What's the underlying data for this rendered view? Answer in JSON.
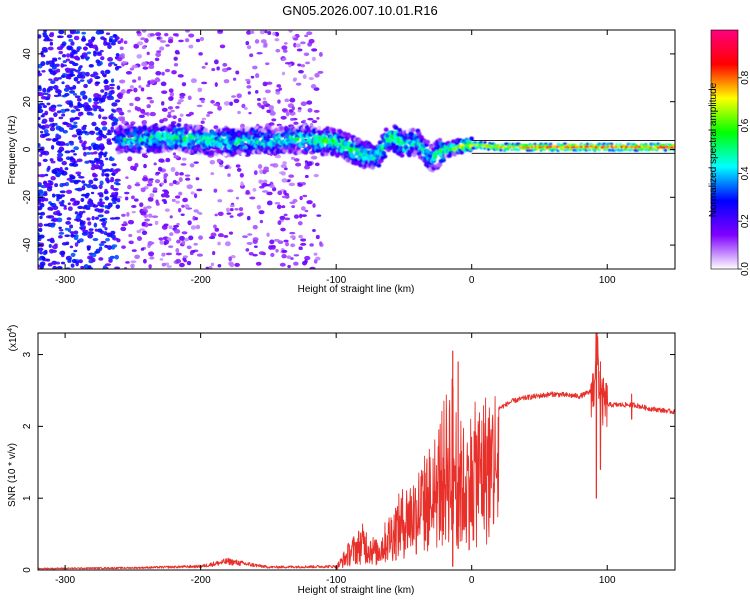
{
  "title": "GN05.2026.007.10.01.R16",
  "chart_data": [
    {
      "type": "heatmap",
      "title": "GN05.2026.007.10.01.R16",
      "xlabel": "Height of straight line (km)",
      "ylabel": "Frequency (Hz)",
      "xlim": [
        -320,
        150
      ],
      "ylim": [
        -50,
        50
      ],
      "xticks": [
        -300,
        -200,
        -100,
        0,
        100
      ],
      "yticks": [
        -40,
        -20,
        0,
        20,
        40
      ],
      "grid": false,
      "colorbar": {
        "label": "Normalized spectral amplitude",
        "range": [
          0.0,
          1.0
        ],
        "ticks": [
          0.0,
          0.2,
          0.4,
          0.6,
          0.8
        ],
        "tick_labels": [
          "0.0",
          "0.2",
          "0.4",
          "0.6",
          "0.8"
        ],
        "colormap": [
          "#ffffff",
          "#7f00ff",
          "#0000ff",
          "#00ffff",
          "#00ff00",
          "#ffff00",
          "#ff0000",
          "#ff0080"
        ]
      },
      "signal_track": {
        "description": "frequency centre of strongest energy vs height",
        "x": [
          -260,
          -220,
          -180,
          -140,
          -120,
          -100,
          -80,
          -70,
          -60,
          -50,
          -40,
          -30,
          -20,
          -10,
          0,
          20,
          50,
          80,
          100,
          120,
          150
        ],
        "freq": [
          4,
          5,
          3,
          4,
          4,
          3,
          -2,
          -3,
          6,
          2,
          3,
          -4,
          0,
          1,
          2,
          1,
          1,
          1,
          1,
          1,
          1
        ],
        "amplitude": [
          0.4,
          0.5,
          0.45,
          0.45,
          0.5,
          0.55,
          0.5,
          0.45,
          0.55,
          0.5,
          0.45,
          0.4,
          0.6,
          0.65,
          0.7,
          0.8,
          0.9,
          0.9,
          0.9,
          0.9,
          0.9
        ]
      }
    },
    {
      "type": "line",
      "xlabel": "Height of straight line (km)",
      "ylabel": "SNR (10 * v/v)",
      "scale_label": "(x10",
      "scale_exp": "4",
      "scale_close": ")",
      "xlim": [
        -320,
        150
      ],
      "ylim": [
        0,
        3.3
      ],
      "xticks": [
        -300,
        -200,
        -100,
        0,
        100
      ],
      "yticks": [
        0,
        1,
        2,
        3
      ],
      "grid": false,
      "series": [
        {
          "name": "SNR",
          "color": "#e8302a",
          "envelope_x": [
            -320,
            -250,
            -200,
            -180,
            -150,
            -100,
            -90,
            -80,
            -70,
            -60,
            -50,
            -40,
            -30,
            -20,
            -15,
            -10,
            -5,
            0,
            10,
            20,
            30,
            40,
            60,
            80,
            90,
            92,
            95,
            100,
            110,
            120,
            130,
            150
          ],
          "envelope_y": [
            0.02,
            0.03,
            0.05,
            0.12,
            0.04,
            0.05,
            0.35,
            0.55,
            0.35,
            0.7,
            1.0,
            1.2,
            1.5,
            2.0,
            2.4,
            1.8,
            1.7,
            1.9,
            2.1,
            2.25,
            2.35,
            2.4,
            2.45,
            2.42,
            2.5,
            3.3,
            2.35,
            2.3,
            2.3,
            2.3,
            2.25,
            2.2
          ],
          "spikes": [
            {
              "x": -14,
              "y": 3.05,
              "low": 0.05
            },
            {
              "x": -10,
              "y": 2.9,
              "low": 0.3
            },
            {
              "x": 92,
              "y": 3.35,
              "low": 1.0
            },
            {
              "x": 95,
              "y": 2.9,
              "low": 1.4
            },
            {
              "x": 118,
              "y": 2.45,
              "low": 2.1
            }
          ]
        }
      ]
    }
  ]
}
